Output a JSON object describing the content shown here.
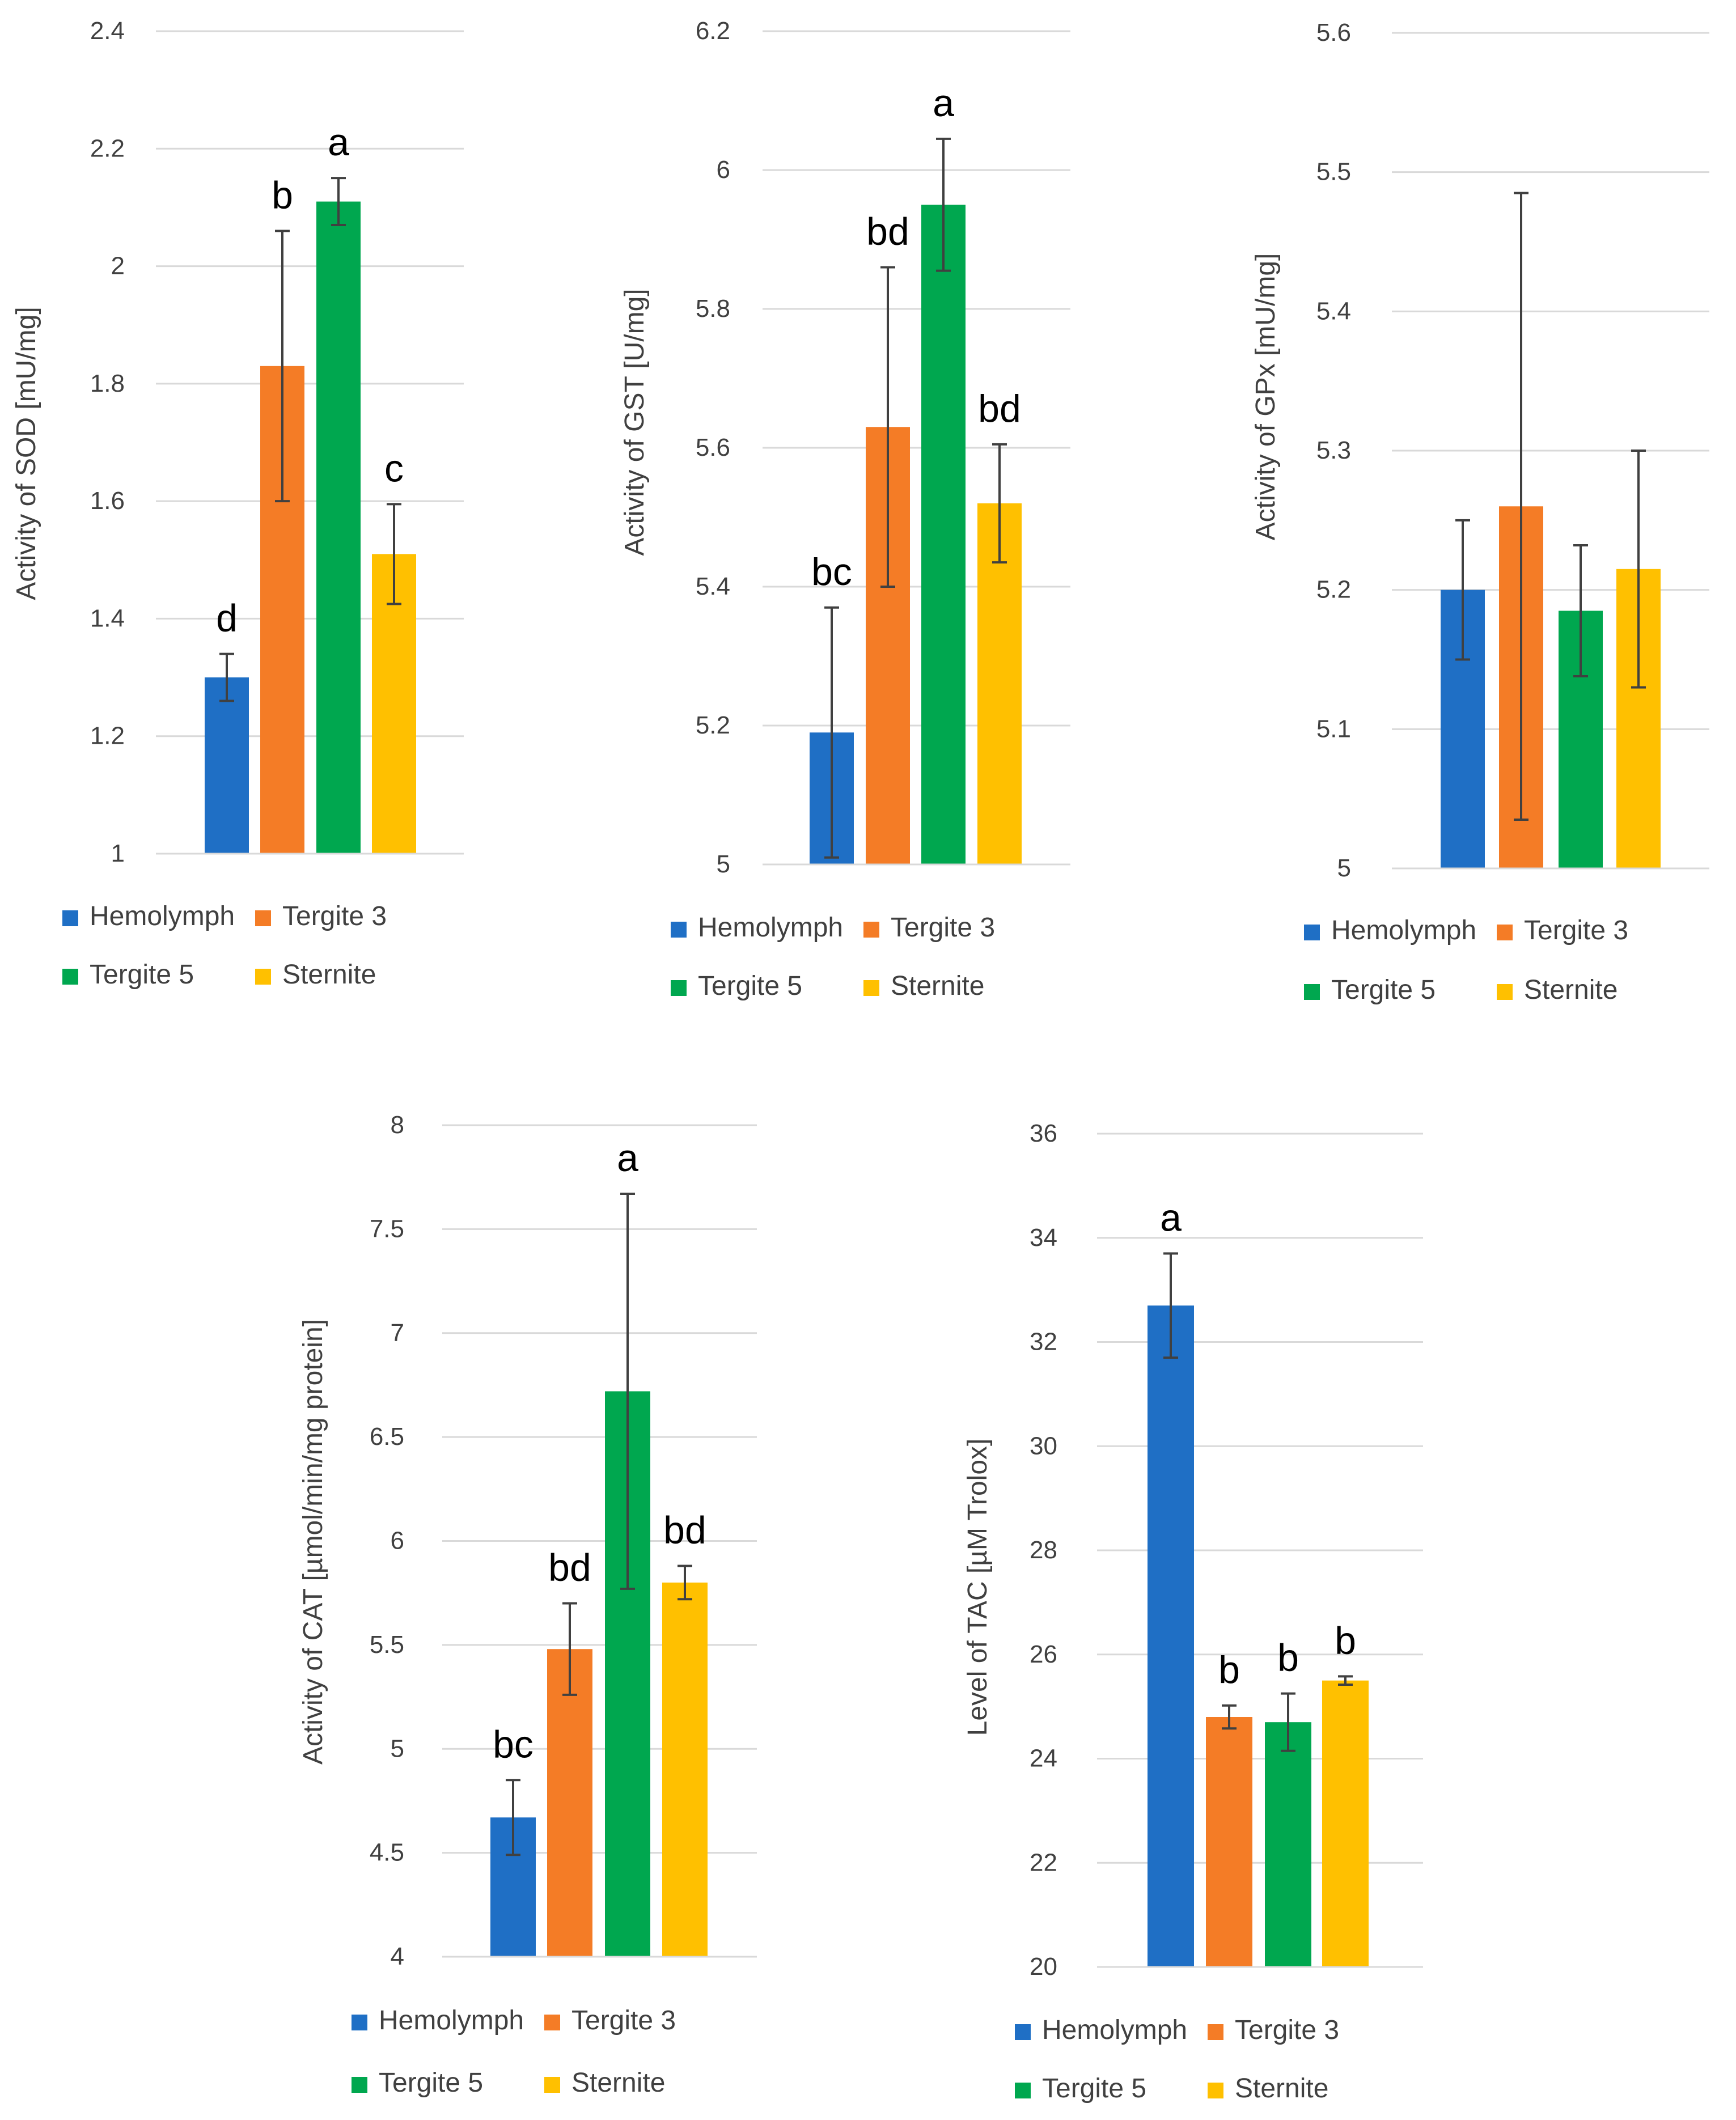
{
  "chart_data": [
    {
      "id": "sod",
      "type": "bar",
      "categories": [
        "Hemolymph",
        "Tergite 3",
        "Tergite 5",
        "Sternite"
      ],
      "values": [
        1.3,
        1.83,
        2.11,
        1.51
      ],
      "errors": [
        0.04,
        0.23,
        0.04,
        0.085
      ],
      "significance_letters": [
        "d",
        "b",
        "a",
        "c"
      ],
      "ylabel": "Activity of SOD [mU/mg]",
      "ylim": [
        1,
        2.4
      ],
      "yticks": [
        1,
        1.2,
        1.4,
        1.6,
        1.8,
        2,
        2.2,
        2.4
      ],
      "ytick_labels": [
        "1",
        "1.2",
        "1.4",
        "1.6",
        "1.8",
        "2",
        "2.2",
        "2.4"
      ],
      "grid": true,
      "legend": [
        "Hemolymph",
        "Tergite 3",
        "Tergite 5",
        "Sternite"
      ]
    },
    {
      "id": "gst",
      "type": "bar",
      "categories": [
        "Hemolymph",
        "Tergite 3",
        "Tergite 5",
        "Sternite"
      ],
      "values": [
        5.19,
        5.63,
        5.95,
        5.52
      ],
      "errors": [
        0.18,
        0.23,
        0.095,
        0.085
      ],
      "significance_letters": [
        "bc",
        "bd",
        "a",
        "bd"
      ],
      "ylabel": "Activity of GST [U/mg]",
      "ylim": [
        5,
        6.2
      ],
      "yticks": [
        5,
        5.2,
        5.4,
        5.6,
        5.8,
        6,
        6.2
      ],
      "ytick_labels": [
        "5",
        "5.2",
        "5.4",
        "5.6",
        "5.8",
        "6",
        "6.2"
      ],
      "grid": true,
      "legend": [
        "Hemolymph",
        "Tergite 3",
        "Tergite 5",
        "Sternite"
      ]
    },
    {
      "id": "gpx",
      "type": "bar",
      "categories": [
        "Hemolymph",
        "Tergite 3",
        "Tergite 5",
        "Sternite"
      ],
      "values": [
        5.2,
        5.26,
        5.185,
        5.215
      ],
      "errors": [
        0.05,
        0.225,
        0.047,
        0.085
      ],
      "significance_letters": [
        "",
        "",
        "",
        ""
      ],
      "ylabel": "Activity of GPx [mU/mg]",
      "ylim": [
        5,
        5.6
      ],
      "yticks": [
        5,
        5.1,
        5.2,
        5.3,
        5.4,
        5.5,
        5.6
      ],
      "ytick_labels": [
        "5",
        "5.1",
        "5.2",
        "5.3",
        "5.4",
        "5.5",
        "5.6"
      ],
      "grid": true,
      "legend": [
        "Hemolymph",
        "Tergite 3",
        "Tergite 5",
        "Sternite"
      ]
    },
    {
      "id": "cat",
      "type": "bar",
      "categories": [
        "Hemolymph",
        "Tergite 3",
        "Tergite 5",
        "Sternite"
      ],
      "values": [
        4.67,
        5.48,
        6.72,
        5.8
      ],
      "errors": [
        0.18,
        0.22,
        0.95,
        0.08
      ],
      "significance_letters": [
        "bc",
        "bd",
        "a",
        "bd"
      ],
      "ylabel": "Activity of CAT [µmol/min/mg protein]",
      "ylim": [
        4,
        8
      ],
      "yticks": [
        4,
        4.5,
        5,
        5.5,
        6,
        6.5,
        7,
        7.5,
        8
      ],
      "ytick_labels": [
        "4",
        "4.5",
        "5",
        "5.5",
        "6",
        "6.5",
        "7",
        "7.5",
        "8"
      ],
      "grid": true,
      "legend": [
        "Hemolymph",
        "Tergite 3",
        "Tergite 5",
        "Sternite"
      ]
    },
    {
      "id": "tac",
      "type": "bar",
      "categories": [
        "Hemolymph",
        "Tergite 3",
        "Tergite 5",
        "Sternite"
      ],
      "values": [
        32.7,
        24.8,
        24.7,
        25.5
      ],
      "errors": [
        1.0,
        0.22,
        0.55,
        0.08
      ],
      "significance_letters": [
        "a",
        "b",
        "b",
        "b"
      ],
      "ylabel": "Level of TAC [µM Trolox]",
      "ylim": [
        20,
        36
      ],
      "yticks": [
        20,
        22,
        24,
        26,
        28,
        30,
        32,
        34,
        36
      ],
      "ytick_labels": [
        "20",
        "22",
        "24",
        "26",
        "28",
        "30",
        "32",
        "34",
        "36"
      ],
      "grid": true,
      "legend": [
        "Hemolymph",
        "Tergite 3",
        "Tergite 5",
        "Sternite"
      ]
    }
  ],
  "colors": {
    "series": [
      "#1f6fc5",
      "#f47c26",
      "#00a74f",
      "#ffc000"
    ],
    "grid": "#d9d9d9",
    "error_bar": "#404040",
    "tick_text": "#404040",
    "letter_text": "#000000"
  }
}
